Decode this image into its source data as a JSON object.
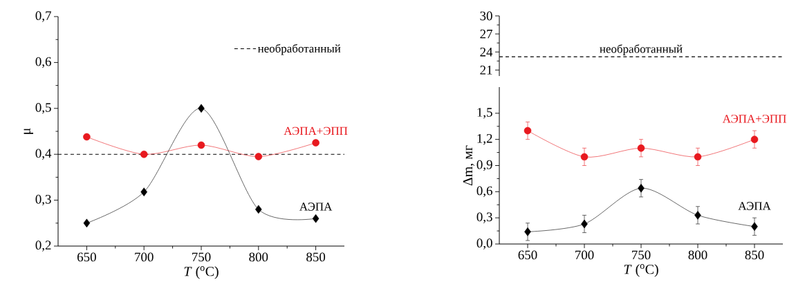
{
  "chart_data": [
    {
      "type": "line",
      "xlabel": "*T* ($^{o}$C)",
      "ylabel": "μ",
      "xlim": [
        625,
        875
      ],
      "ylim": [
        0.2,
        0.7
      ],
      "xticks": [
        650,
        700,
        750,
        800,
        850
      ],
      "yticks": [
        {
          "value": 0.2,
          "label": "0,2"
        },
        {
          "value": 0.3,
          "label": "0,3"
        },
        {
          "value": 0.4,
          "label": "0,4"
        },
        {
          "value": 0.5,
          "label": "0,5"
        },
        {
          "value": 0.6,
          "label": "0,6"
        },
        {
          "value": 0.7,
          "label": "0,7"
        }
      ],
      "x": [
        650,
        700,
        750,
        800,
        850
      ],
      "legend": "top right",
      "ref_lines": [
        {
          "axis": "y",
          "value": 0.4,
          "label": "необработанный",
          "color": "#000000",
          "line_style": "dashed"
        }
      ],
      "series": [
        {
          "name": "АЭПА+ЭПП",
          "color": "#e8191f",
          "marker": "circle",
          "values": [
            0.438,
            0.4,
            0.42,
            0.395,
            0.425
          ]
        },
        {
          "name": "АЭПА",
          "color": "#000000",
          "marker": "diamond",
          "values": [
            0.25,
            0.318,
            0.5,
            0.28,
            0.26
          ]
        }
      ]
    },
    {
      "type": "line",
      "xlim": [
        625,
        875
      ],
      "ylim": [
        20,
        30
      ],
      "yticks": [
        21,
        24,
        27,
        30
      ],
      "tick_labels": "y",
      "ref_lines": [
        {
          "axis": "y",
          "value": 23.2,
          "label": "необработанный",
          "color": "#000000",
          "line_style": "dashed"
        }
      ]
    },
    {
      "type": "line",
      "xlabel": "*T* ($^{o}$C)",
      "ylabel": "Δm, мг",
      "xlim": [
        625,
        875
      ],
      "ylim": [
        0,
        1.8
      ],
      "xticks": [
        650,
        700,
        750,
        800,
        850
      ],
      "yticks": [
        {
          "value": 0,
          "label": "0,0"
        },
        {
          "value": 0.3,
          "label": "0,3"
        },
        {
          "value": 0.6,
          "label": "0,6"
        },
        {
          "value": 0.9,
          "label": "0,9"
        },
        {
          "value": 1.2,
          "label": "1,2"
        },
        {
          "value": 1.5,
          "label": "1,5"
        }
      ],
      "x": [
        650,
        700,
        750,
        800,
        850
      ],
      "series": [
        {
          "name": "АЭПА+ЭПП",
          "color": "#e8191f",
          "marker": "circle",
          "values": [
            1.3,
            1.0,
            1.1,
            1.0,
            1.2
          ],
          "errors": [
            0.1,
            0.1,
            0.1,
            0.1,
            0.1
          ]
        },
        {
          "name": "АЭПА",
          "color": "#000000",
          "marker": "diamond",
          "values": [
            0.14,
            0.23,
            0.64,
            0.33,
            0.2
          ],
          "errors": [
            0.1,
            0.1,
            0.1,
            0.1,
            0.1
          ]
        }
      ]
    }
  ]
}
